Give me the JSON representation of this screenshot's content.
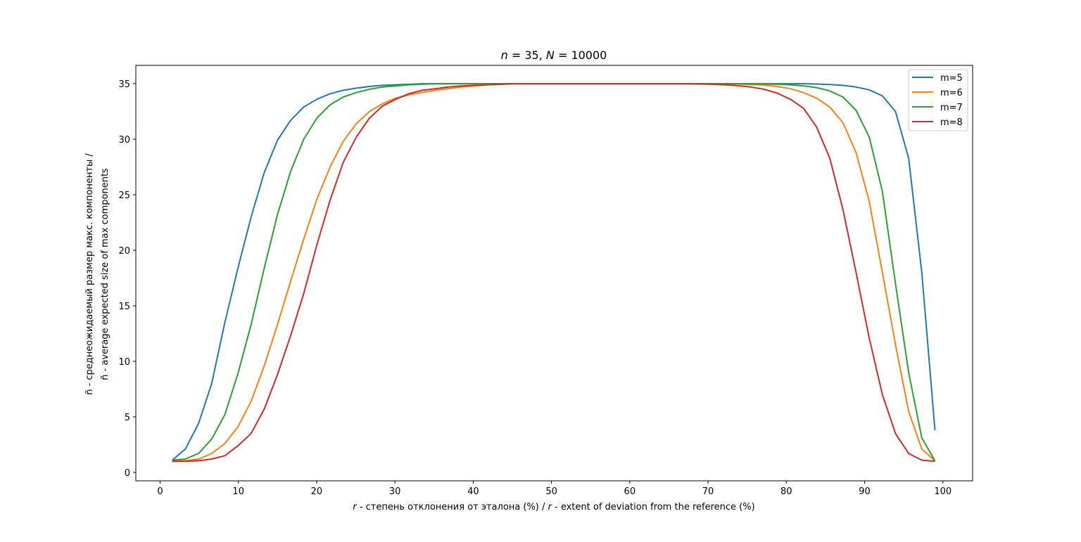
{
  "chart_data": {
    "type": "line",
    "title_parts": {
      "n_label": "n",
      "n_value": " = 35, ",
      "N_label": "N",
      "N_value": " = 10000"
    },
    "xlabel_parts": {
      "var": "r",
      "text1": " - степень отклонения от эталона (%) / ",
      "var2": "r",
      "text2": " - extent of deviation from the reference (%)"
    },
    "ylabel_lines": [
      "ñ - среднеожидаемый размер макс. компоненты /",
      "ñ - average expected size of max components"
    ],
    "xlim": [
      -3.1,
      103.8
    ],
    "ylim": [
      -0.76,
      36.65
    ],
    "xticks": [
      0,
      10,
      20,
      30,
      40,
      50,
      60,
      70,
      80,
      90,
      100
    ],
    "yticks": [
      0,
      5,
      10,
      15,
      20,
      25,
      30,
      35
    ],
    "grid": false,
    "legend_position": "top-right",
    "x": [
      1.55,
      3.23,
      4.91,
      6.59,
      8.27,
      9.95,
      11.63,
      13.31,
      14.99,
      16.67,
      18.35,
      20.03,
      21.71,
      23.39,
      25.07,
      26.75,
      28.43,
      30.11,
      31.79,
      33.47,
      35.15,
      36.83,
      38.51,
      40.19,
      41.87,
      43.55,
      45.23,
      46.91,
      48.59,
      50.27,
      51.95,
      53.63,
      55.31,
      56.99,
      58.67,
      60.35,
      62.03,
      63.71,
      65.39,
      67.07,
      68.75,
      70.43,
      72.11,
      73.79,
      75.47,
      77.15,
      78.83,
      80.51,
      82.19,
      83.87,
      85.55,
      87.23,
      88.91,
      90.59,
      92.27,
      93.95,
      95.63,
      97.31,
      98.99
    ],
    "series": [
      {
        "name": "m=5",
        "color": "#1f77b4",
        "values": [
          1.1,
          2.1,
          4.4,
          8.0,
          13.5,
          18.4,
          23.0,
          27.0,
          29.9,
          31.7,
          32.9,
          33.6,
          34.1,
          34.4,
          34.6,
          34.75,
          34.85,
          34.9,
          34.95,
          35,
          35,
          35,
          35,
          35,
          35,
          35,
          35,
          35,
          35,
          35,
          35,
          35,
          35,
          35,
          35,
          35,
          35,
          35,
          35,
          35,
          35,
          35,
          35,
          35,
          35,
          35,
          35,
          35,
          35,
          34.97,
          34.93,
          34.85,
          34.7,
          34.45,
          33.9,
          32.5,
          28.3,
          18.0,
          3.8
        ]
      },
      {
        "name": "m=6",
        "color": "#ff7f0e",
        "values": [
          1.0,
          1.05,
          1.2,
          1.7,
          2.6,
          4.1,
          6.4,
          9.6,
          13.3,
          17.2,
          21.0,
          24.6,
          27.5,
          29.8,
          31.4,
          32.5,
          33.2,
          33.7,
          34.0,
          34.2,
          34.4,
          34.55,
          34.7,
          34.8,
          34.9,
          34.95,
          35,
          35,
          35,
          35,
          35,
          35,
          35,
          35,
          35,
          35,
          35,
          35,
          35,
          35,
          35,
          35,
          35,
          34.97,
          34.93,
          34.87,
          34.75,
          34.55,
          34.2,
          33.7,
          32.9,
          31.5,
          28.8,
          24.4,
          18.0,
          11.5,
          5.5,
          2.1,
          1.05
        ]
      },
      {
        "name": "m=7",
        "color": "#2ca02c",
        "values": [
          1.1,
          1.2,
          1.7,
          3.0,
          5.2,
          8.9,
          13.3,
          18.4,
          23.2,
          27.1,
          30.0,
          31.9,
          33.1,
          33.8,
          34.2,
          34.5,
          34.7,
          34.8,
          34.9,
          34.95,
          35,
          35,
          35,
          35,
          35,
          35,
          35,
          35,
          35,
          35,
          35,
          35,
          35,
          35,
          35,
          35,
          35,
          35,
          35,
          35,
          35,
          35,
          35,
          35,
          35,
          34.97,
          34.95,
          34.9,
          34.8,
          34.65,
          34.35,
          33.8,
          32.6,
          30.2,
          25.3,
          17.0,
          9.0,
          3.1,
          1.05
        ]
      },
      {
        "name": "m=8",
        "color": "#d62728",
        "values": [
          1.0,
          1.0,
          1.05,
          1.2,
          1.5,
          2.4,
          3.5,
          5.7,
          8.8,
          12.3,
          16.1,
          20.5,
          24.5,
          27.9,
          30.2,
          31.9,
          33.0,
          33.6,
          34.1,
          34.4,
          34.55,
          34.7,
          34.8,
          34.85,
          34.9,
          34.95,
          35,
          35,
          35,
          35,
          35,
          35,
          35,
          35,
          35,
          35,
          35,
          35,
          35,
          35,
          34.97,
          34.95,
          34.9,
          34.82,
          34.7,
          34.5,
          34.15,
          33.6,
          32.8,
          31.1,
          28.3,
          23.7,
          18.0,
          12.1,
          7.0,
          3.5,
          1.7,
          1.1,
          1.0
        ]
      }
    ]
  }
}
